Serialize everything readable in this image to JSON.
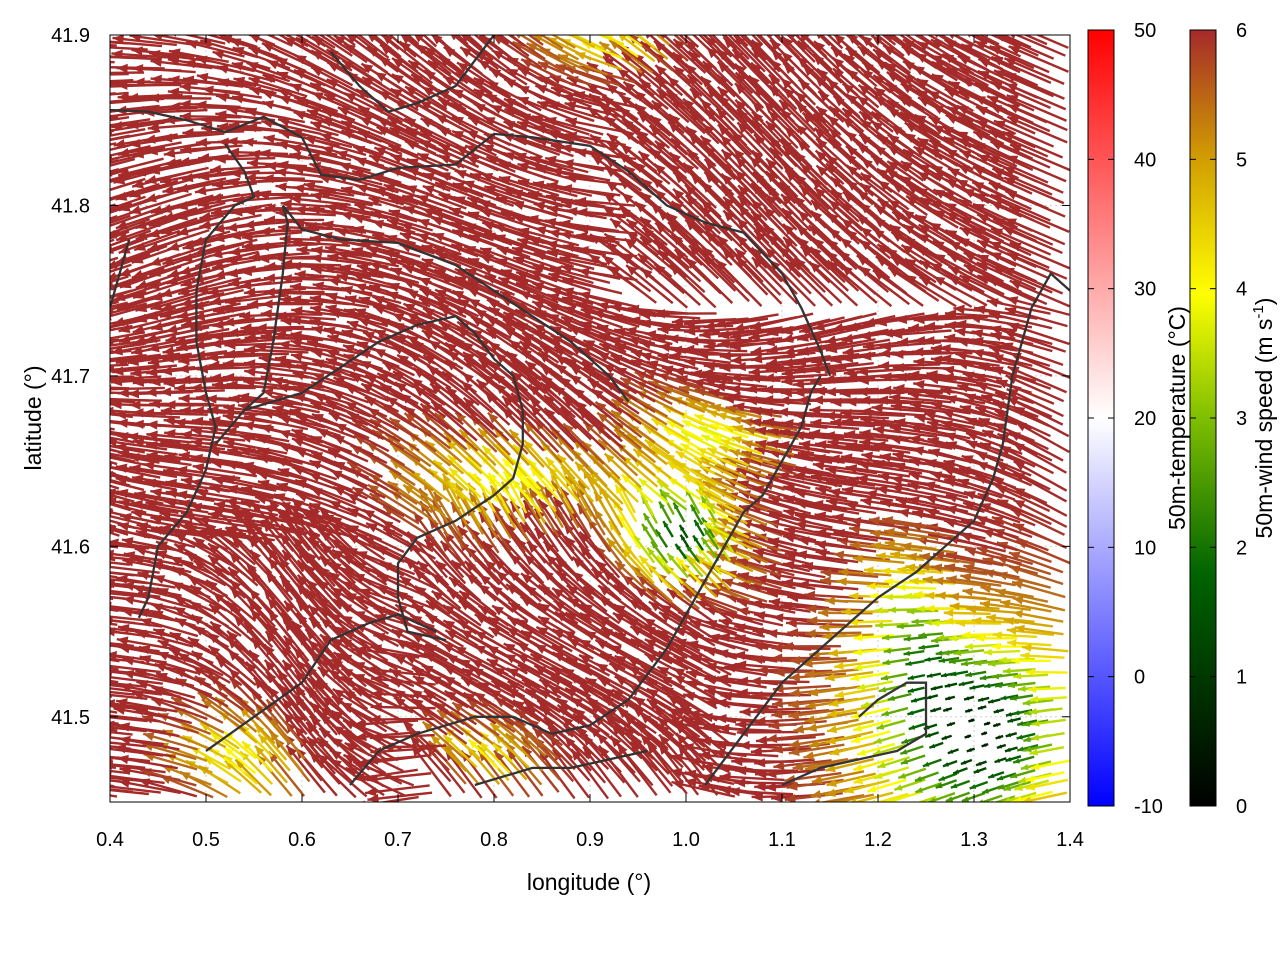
{
  "chart_data": {
    "type": "vector-field",
    "xlabel": "longitude (°)",
    "ylabel": "latitude (°)",
    "xlim": [
      0.4,
      1.4
    ],
    "ylim": [
      41.45,
      41.9
    ],
    "x_ticks": [
      "0.4",
      "0.5",
      "0.6",
      "0.7",
      "0.8",
      "0.9",
      "1.0",
      "1.1",
      "1.2",
      "1.3",
      "1.4"
    ],
    "y_ticks": [
      "41.5",
      "41.6",
      "41.7",
      "41.8",
      "41.9"
    ],
    "grid": true,
    "colorbars": [
      {
        "label": "50m-temperature (°C)",
        "range": [
          -10,
          50
        ],
        "ticks": [
          "-10",
          "0",
          "10",
          "20",
          "30",
          "40",
          "50"
        ],
        "colors": [
          "#0000ff",
          "#ffffff",
          "#ff0000"
        ]
      },
      {
        "label": "50m-wind speed (m s",
        "label_sup": "-1",
        "label_tail": ")",
        "range": [
          0,
          6
        ],
        "ticks": [
          "0",
          "1",
          "2",
          "3",
          "4",
          "5",
          "6"
        ],
        "colors": [
          "#000000",
          "#006400",
          "#7fbf00",
          "#ffff00",
          "#d2a000",
          "#b5651d",
          "#a52a2a"
        ]
      }
    ],
    "dominant_wind": {
      "direction": "toward west-northwest",
      "speed_range": [
        0,
        6
      ],
      "color": "#a52a2a"
    },
    "contour_color": "#333333"
  }
}
